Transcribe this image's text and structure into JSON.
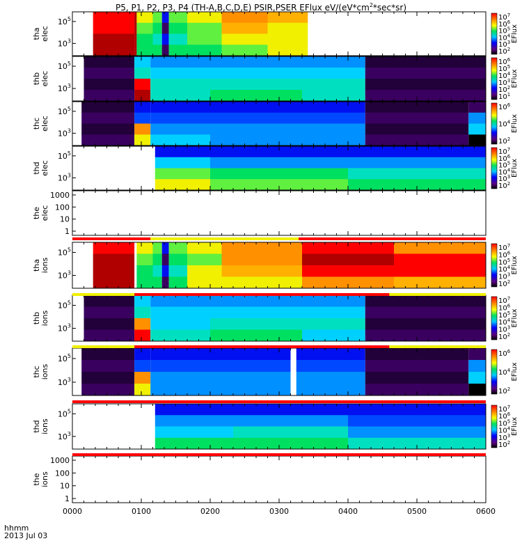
{
  "chart_data": {
    "type": "heatmap",
    "title": "P5, P1, P2, P3, P4 (TH-A,B,C,D,E) PSIR,PSER EFlux eV/(eV*cm",
    "title_sup": "2",
    "title_tail": "*sec*sr)",
    "x_axis": {
      "tick_labels": [
        "0000",
        "0100",
        "0200",
        "0300",
        "0400",
        "0500",
        "0600"
      ],
      "range_minutes": [
        0,
        360
      ],
      "footer_label": "hhmm",
      "date_label": "2013 Jul 03"
    },
    "panels": [
      {
        "ylabel": [
          "tha",
          "elec"
        ],
        "yticks": [
          "10",
          "10"
        ],
        "ytick_sup": [
          "5",
          "3"
        ],
        "has_colorbar": true,
        "colorbar_ticks": [
          "10",
          "10",
          "10",
          "10",
          "10",
          "10"
        ],
        "colorbar_sup": [
          "7",
          "6",
          "5",
          "4",
          "3",
          "2"
        ],
        "colorbar_label": "EFlux"
      },
      {
        "ylabel": [
          "thb",
          "elec"
        ],
        "yticks": [
          "10",
          "10"
        ],
        "ytick_sup": [
          "5",
          "3"
        ],
        "has_colorbar": true,
        "colorbar_ticks": [
          "10",
          "10",
          "10",
          "10",
          "10",
          "10"
        ],
        "colorbar_sup": [
          "6",
          "5",
          "4",
          "3",
          "2",
          "1"
        ],
        "colorbar_label": "EFlux"
      },
      {
        "ylabel": [
          "thc",
          "elec"
        ],
        "yticks": [
          "10",
          "10"
        ],
        "ytick_sup": [
          "5",
          "3"
        ],
        "has_colorbar": true,
        "colorbar_ticks": [
          "10",
          "10",
          "10"
        ],
        "colorbar_sup": [
          "6",
          "4",
          "2"
        ],
        "colorbar_label": "EFlux"
      },
      {
        "ylabel": [
          "thd",
          "elec"
        ],
        "yticks": [
          "10",
          "10"
        ],
        "ytick_sup": [
          "5",
          "3"
        ],
        "has_colorbar": true,
        "colorbar_ticks": [
          "10",
          "10",
          "10",
          "10",
          "10",
          "10"
        ],
        "colorbar_sup": [
          "7",
          "6",
          "5",
          "4",
          "3",
          "2"
        ],
        "colorbar_label": "EFlux"
      },
      {
        "ylabel": [
          "the",
          "elec"
        ],
        "yticks": [
          "1000",
          "100",
          "10",
          "1"
        ],
        "has_colorbar": false
      },
      {
        "ylabel": [
          "tha",
          "ions"
        ],
        "yticks": [
          "10",
          "10"
        ],
        "ytick_sup": [
          "5",
          "3"
        ],
        "has_colorbar": true,
        "colorbar_ticks": [
          "10",
          "10",
          "10",
          "10",
          "10",
          "10"
        ],
        "colorbar_sup": [
          "7",
          "6",
          "5",
          "4",
          "3",
          "2"
        ],
        "colorbar_label": "EFlux"
      },
      {
        "ylabel": [
          "thb",
          "ions"
        ],
        "yticks": [
          "10",
          "10"
        ],
        "ytick_sup": [
          "5",
          "3"
        ],
        "has_colorbar": true,
        "colorbar_ticks": [
          "10",
          "10",
          "10",
          "10",
          "10",
          "10"
        ],
        "colorbar_sup": [
          "7",
          "6",
          "5",
          "4",
          "3",
          "2"
        ],
        "colorbar_label": "EFlux"
      },
      {
        "ylabel": [
          "thc",
          "ions"
        ],
        "yticks": [
          "10",
          "10"
        ],
        "ytick_sup": [
          "5",
          "3"
        ],
        "has_colorbar": true,
        "colorbar_ticks": [
          "10",
          "10",
          "10"
        ],
        "colorbar_sup": [
          "6",
          "4",
          "2"
        ],
        "colorbar_label": "EFlux"
      },
      {
        "ylabel": [
          "thd",
          "ions"
        ],
        "yticks": [
          "10",
          "10"
        ],
        "ytick_sup": [
          "5",
          "3"
        ],
        "has_colorbar": true,
        "colorbar_ticks": [
          "10",
          "10",
          "10",
          "10",
          "10",
          "10"
        ],
        "colorbar_sup": [
          "7",
          "6",
          "5",
          "4",
          "3",
          "2"
        ],
        "colorbar_label": "EFlux"
      },
      {
        "ylabel": [
          "the",
          "ions"
        ],
        "yticks": [
          "1000",
          "100",
          "10",
          "1"
        ],
        "has_colorbar": false
      }
    ]
  },
  "colors": {
    "status_red": "#ff0000",
    "status_yellow": "#ffff00",
    "bar_black": "#000000"
  }
}
